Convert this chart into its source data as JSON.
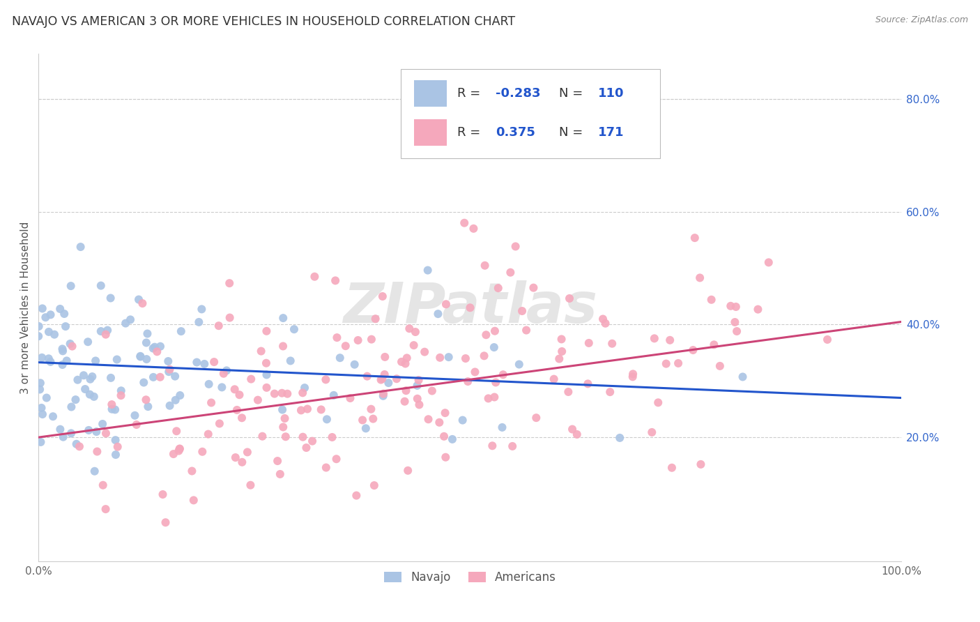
{
  "title": "NAVAJO VS AMERICAN 3 OR MORE VEHICLES IN HOUSEHOLD CORRELATION CHART",
  "source": "Source: ZipAtlas.com",
  "ylabel": "3 or more Vehicles in Household",
  "xlim": [
    0,
    1
  ],
  "ylim": [
    -0.02,
    0.88
  ],
  "ytick_positions": [
    0.2,
    0.4,
    0.6,
    0.8
  ],
  "ytick_labels": [
    "20.0%",
    "40.0%",
    "60.0%",
    "80.0%"
  ],
  "xtick_positions": [
    0.0,
    0.2,
    0.4,
    0.6,
    0.8,
    1.0
  ],
  "xtick_labels": [
    "0.0%",
    "",
    "",
    "",
    "",
    "100.0%"
  ],
  "navajo_dot_color": "#aac4e4",
  "american_dot_color": "#f5a8bc",
  "navajo_line_color": "#2255cc",
  "american_line_color": "#cc4477",
  "navajo_R": "-0.283",
  "navajo_N": "110",
  "american_R": "0.375",
  "american_N": "171",
  "navajo_intercept": 0.333,
  "navajo_slope": -0.063,
  "american_intercept": 0.2,
  "american_slope": 0.205,
  "background_color": "#ffffff",
  "grid_color": "#cccccc",
  "title_fontsize": 12.5,
  "ylabel_fontsize": 11,
  "tick_fontsize": 11,
  "legend_fontsize": 13,
  "source_fontsize": 9,
  "watermark": "ZIPatlas",
  "navajo_seed": 7,
  "american_seed": 13
}
